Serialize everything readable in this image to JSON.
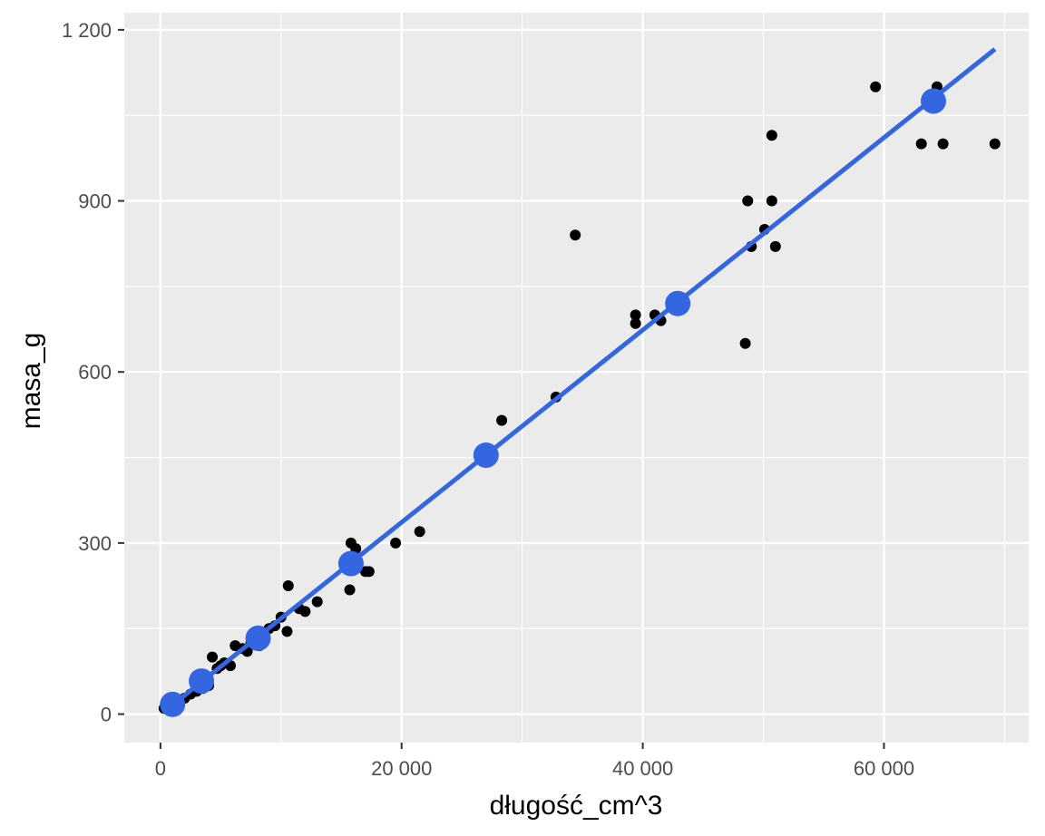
{
  "chart_data": {
    "type": "scatter",
    "xlabel": "długość_cm^3",
    "ylabel": "masa_g",
    "xlim": [
      -3000,
      72000
    ],
    "ylim": [
      -50,
      1230
    ],
    "x_ticks": [
      0,
      20000,
      40000,
      60000
    ],
    "x_tick_labels": [
      "0",
      "20 000",
      "40 000",
      "60 000"
    ],
    "y_ticks": [
      0,
      300,
      600,
      900,
      1200
    ],
    "y_tick_labels": [
      "0",
      "300",
      "600",
      "900",
      "1 200"
    ],
    "grid": true,
    "background": "#ebebeb",
    "grid_color": "#ffffff",
    "point_color": "#000000",
    "fit_color": "#3366e0",
    "series": [
      {
        "kind": "points",
        "x": [
          300,
          700,
          1000,
          1300,
          1600,
          2000,
          2500,
          3000,
          3500,
          4000,
          4300,
          4700,
          5000,
          5300,
          5800,
          6200,
          6800,
          7200,
          7500,
          7800,
          8200,
          8500,
          9000,
          9500,
          10000,
          10500,
          10600,
          11500,
          12000,
          13000,
          15700,
          15800,
          16200,
          17000,
          17300,
          19500,
          21500,
          28300,
          32800,
          34400,
          39400,
          39400,
          41000,
          41500,
          48500,
          48700,
          49000,
          50100,
          50700,
          50700,
          51000,
          59300,
          63100,
          64400,
          64900,
          69200
        ],
        "y": [
          10,
          15,
          12,
          20,
          25,
          28,
          35,
          40,
          45,
          50,
          100,
          80,
          85,
          90,
          85,
          120,
          115,
          110,
          125,
          130,
          120,
          140,
          150,
          155,
          170,
          145,
          225,
          185,
          180,
          197,
          218,
          300,
          290,
          250,
          250,
          300,
          320,
          515,
          556,
          840,
          700,
          685,
          700,
          690,
          650,
          900,
          820,
          850,
          1015,
          900,
          820,
          1100,
          1000,
          1100,
          1000,
          1000
        ]
      },
      {
        "kind": "line",
        "x": [
          1000,
          69200
        ],
        "y": [
          16,
          1166
        ]
      },
      {
        "kind": "large_points",
        "x": [
          1000,
          3400,
          8100,
          15800,
          27000,
          42900,
          64100
        ],
        "y": [
          17,
          58,
          133,
          264,
          454,
          720,
          1075
        ]
      }
    ]
  }
}
